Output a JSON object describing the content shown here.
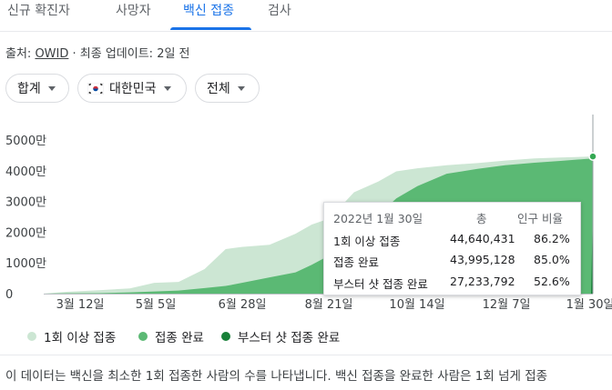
{
  "tabs": [
    {
      "label": "신규 확진자",
      "active": false
    },
    {
      "label": "사망자",
      "active": false
    },
    {
      "label": "백신 접종",
      "active": true
    },
    {
      "label": "검사",
      "active": false
    }
  ],
  "source": {
    "prefix": "출처:",
    "link": "OWID",
    "rest": " · 최종 업데이트: 2일 전"
  },
  "filters": {
    "aggregate": "합계",
    "country": "대한민국",
    "age": "전체"
  },
  "colors": {
    "accent": "#1a73e8",
    "first_dose": "#cce6d3",
    "fully_vaccinated": "#5bb974",
    "booster": "#188038"
  },
  "chart_data": {
    "type": "area",
    "y_ticks": [
      "5000만",
      "4000만",
      "3000만",
      "2000만",
      "1000만",
      "0"
    ],
    "ylim": [
      0,
      52000000
    ],
    "x_tick_labels": [
      "3월 12일",
      "5월 5일",
      "6월 28일",
      "8월 21일",
      "10월 14일",
      "12월 7일",
      "1월 30일"
    ],
    "x": [
      "2021-02-26",
      "2021-03-12",
      "2021-04-01",
      "2021-04-20",
      "2021-05-05",
      "2021-05-20",
      "2021-06-05",
      "2021-06-18",
      "2021-06-28",
      "2021-07-15",
      "2021-07-31",
      "2021-08-10",
      "2021-08-21",
      "2021-09-05",
      "2021-09-20",
      "2021-10-01",
      "2021-10-14",
      "2021-11-01",
      "2021-11-20",
      "2021-12-07",
      "2021-12-25",
      "2022-01-10",
      "2022-01-30"
    ],
    "series": [
      {
        "name": "1회 이상 접종",
        "color": "#cce6d3",
        "values": [
          0,
          600000,
          1100000,
          1700000,
          3500000,
          3800000,
          8000000,
          14500000,
          15200000,
          15900000,
          19500000,
          22500000,
          24500000,
          33000000,
          36500000,
          39800000,
          40800000,
          41800000,
          42500000,
          43300000,
          44000000,
          44300000,
          44640431
        ]
      },
      {
        "name": "접종 완료",
        "color": "#5bb974",
        "values": [
          0,
          100000,
          150000,
          400000,
          700000,
          1000000,
          1800000,
          2500000,
          3500000,
          5300000,
          6900000,
          9400000,
          12500000,
          20000000,
          25500000,
          31000000,
          35000000,
          39000000,
          40600000,
          41800000,
          42600000,
          43200000,
          43995128
        ]
      },
      {
        "name": "부스터 샷 접종 완료",
        "color": "#188038",
        "values": [
          0,
          0,
          0,
          0,
          0,
          0,
          0,
          0,
          0,
          0,
          0,
          0,
          0,
          0,
          0,
          0,
          0,
          0,
          0,
          0,
          0,
          0,
          27233792
        ]
      }
    ],
    "grid": false,
    "legend_position": "bottom"
  },
  "tooltip": {
    "date": "2022년 1월 30일",
    "col_total": "총",
    "col_ratio": "인구 비율",
    "rows": [
      {
        "label": "1회 이상 접종",
        "total": "44,640,431",
        "ratio": "86.2%"
      },
      {
        "label": "접종 완료",
        "total": "43,995,128",
        "ratio": "85.0%"
      },
      {
        "label": "부스터 샷 접종 완료",
        "total": "27,233,792",
        "ratio": "52.6%"
      }
    ]
  },
  "legend": [
    {
      "label": "1회 이상 접종",
      "color": "#cce6d3"
    },
    {
      "label": "접종 완료",
      "color": "#5bb974"
    },
    {
      "label": "부스터 샷 접종 완료",
      "color": "#188038"
    }
  ],
  "description": "이 데이터는 백신을 최소한 1회 접종한 사람의 수를 나타냅니다. 백신 접종을 완료한 사람은 1회 넘게 접종"
}
